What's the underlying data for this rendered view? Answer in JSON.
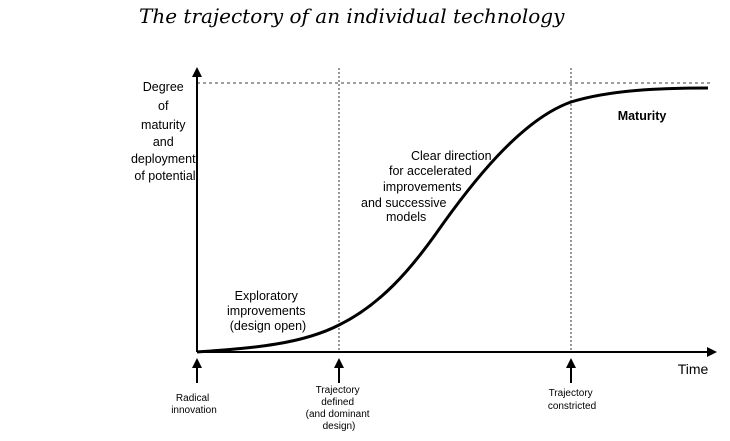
{
  "title": "The trajectory of an individual technology",
  "y_axis_label": [
    "Degree",
    "of",
    "maturity",
    "and",
    "deployment",
    "of potential"
  ],
  "x_axis_label": "Time",
  "phases": {
    "exploratory": [
      "Exploratory",
      "improvements",
      "(design open)"
    ],
    "clear_direction": [
      "Clear direction",
      "for accelerated",
      "improvements",
      "and successive",
      "models"
    ],
    "maturity": "Maturity"
  },
  "milestones": {
    "radical": [
      "Radical",
      "innovation"
    ],
    "defined": [
      "Trajectory",
      "defined",
      "(and dominant",
      "design)"
    ],
    "constricted": [
      "Trajectory",
      "constricted"
    ]
  }
}
